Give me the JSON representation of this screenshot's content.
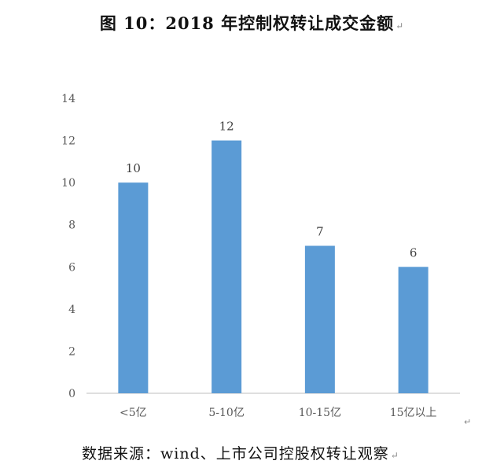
{
  "page": {
    "title": "图 10：2018 年控制权转让成交金额",
    "source": "数据来源：wind、上市公司控股权转让观察",
    "paragraph_mark": "↵"
  },
  "chart_data": {
    "type": "bar",
    "title": "",
    "xlabel": "",
    "ylabel": "",
    "categories": [
      "<5亿",
      "5-10亿",
      "10-15亿",
      "15亿以上"
    ],
    "values": [
      10,
      12,
      7,
      6
    ],
    "ylim": [
      0,
      14
    ],
    "yticks": [
      0,
      2,
      4,
      6,
      8,
      10,
      12,
      14
    ],
    "grid": false,
    "legend": "none",
    "bar_color": "#5b9bd5",
    "data_labels": true
  }
}
